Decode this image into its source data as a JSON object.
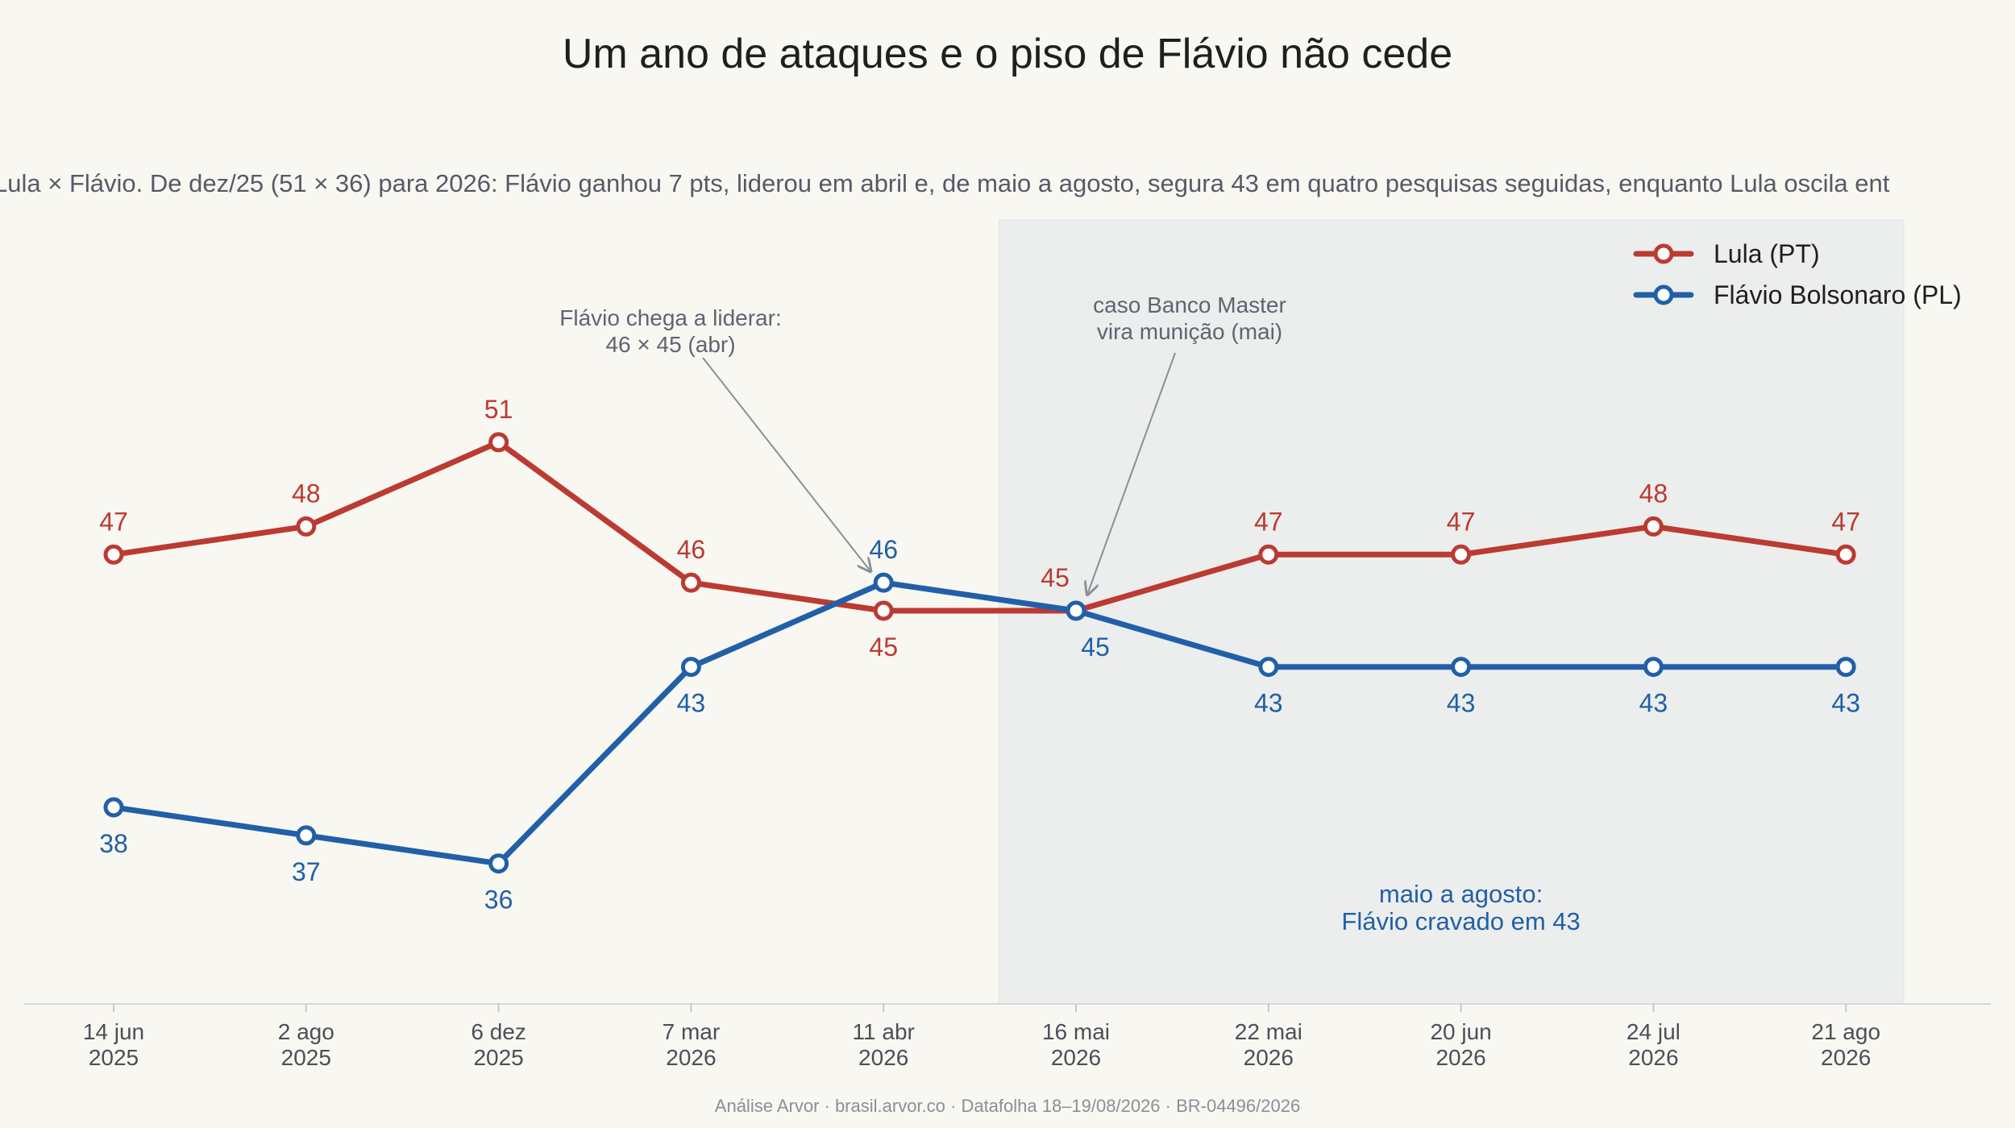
{
  "chart_data": {
    "type": "line",
    "title": "Um ano de ataques e o piso de Flávio não cede",
    "subtitle": "Lula × Flávio. De dez/25 (51 × 36) para 2026: Flávio ganhou 7 pts, liderou em abril e, de maio a agosto, segura 43 em quatro pesquisas seguidas, enquanto Lula oscila ent",
    "categories": [
      [
        "14 jun",
        "2025"
      ],
      [
        "2 ago",
        "2025"
      ],
      [
        "6 dez",
        "2025"
      ],
      [
        "7 mar",
        "2026"
      ],
      [
        "11 abr",
        "2026"
      ],
      [
        "16 mai",
        "2026"
      ],
      [
        "22 mai",
        "2026"
      ],
      [
        "20 jun",
        "2026"
      ],
      [
        "24 jul",
        "2026"
      ],
      [
        "21 ago",
        "2026"
      ]
    ],
    "ylim": [
      31,
      59
    ],
    "legend_position": "top-right",
    "grid": false,
    "series": [
      {
        "name": "Lula (PT)",
        "color": "#bb3a32",
        "values": [
          47,
          48,
          51,
          46,
          45,
          45,
          47,
          47,
          48,
          47
        ],
        "label_pos": [
          "above",
          "above",
          "above",
          "above",
          "below",
          "above",
          "above",
          "above",
          "above",
          "above"
        ]
      },
      {
        "name": "Flávio Bolsonaro (PL)",
        "color": "#2160a8",
        "values": [
          38,
          37,
          36,
          43,
          46,
          45,
          43,
          43,
          43,
          43
        ],
        "label_pos": [
          "below",
          "below",
          "below",
          "below",
          "above",
          "below",
          "below",
          "below",
          "below",
          "below"
        ]
      }
    ],
    "shaded_region": {
      "from_index": 4.6,
      "to_index": 9.3,
      "color": "#eceeed",
      "note": [
        "maio a agosto:",
        "Flávio cravado em 43"
      ],
      "note_color": "#2160a8"
    },
    "annotations": [
      {
        "lines": [
          "Flávio chega a liderar:",
          "46 × 45 (abr)"
        ],
        "target_index": 4,
        "target_value": 46
      },
      {
        "lines": [
          "caso Banco Master",
          "vira munição (mai)"
        ],
        "target_index": 5,
        "target_value": 45
      }
    ],
    "source": "Análise Arvor · brasil.arvor.co · Datafolha 18–19/08/2026 · BR-04496/2026"
  }
}
